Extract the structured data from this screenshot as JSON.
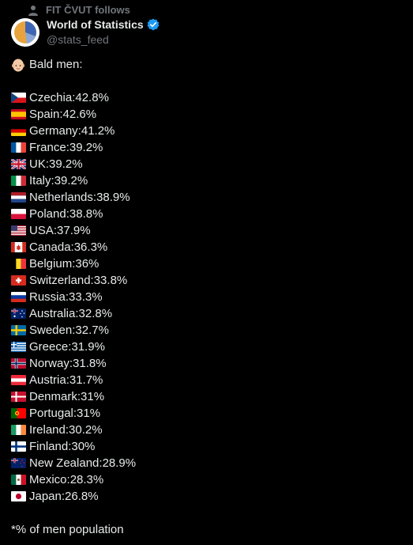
{
  "social_context": {
    "text": "FIT ČVUT follows",
    "icon": "person-icon"
  },
  "author": {
    "display_name": "World of Statistics",
    "handle": "@stats_feed",
    "verified": true,
    "verified_color": "#1d9bf0"
  },
  "tweet": {
    "heading": "Bald men:",
    "heading_icon": "bald-man-face-icon",
    "items": [
      {
        "country": "Czechia",
        "value": "42.8%",
        "flag": "cz"
      },
      {
        "country": "Spain",
        "value": "42.6%",
        "flag": "es"
      },
      {
        "country": "Germany",
        "value": "41.2%",
        "flag": "de"
      },
      {
        "country": "France",
        "value": "39.2%",
        "flag": "fr"
      },
      {
        "country": "UK",
        "value": "39.2%",
        "flag": "gb"
      },
      {
        "country": "Italy",
        "value": "39.2%",
        "flag": "it"
      },
      {
        "country": "Netherlands",
        "value": "38.9%",
        "flag": "nl"
      },
      {
        "country": "Poland",
        "value": "38.8%",
        "flag": "pl"
      },
      {
        "country": "USA",
        "value": "37.9%",
        "flag": "us"
      },
      {
        "country": "Canada",
        "value": "36.3%",
        "flag": "ca"
      },
      {
        "country": "Belgium",
        "value": "36%",
        "flag": "be"
      },
      {
        "country": "Switzerland",
        "value": "33.8%",
        "flag": "ch"
      },
      {
        "country": "Russia",
        "value": "33.3%",
        "flag": "ru"
      },
      {
        "country": "Australia",
        "value": "32.8%",
        "flag": "au"
      },
      {
        "country": "Sweden",
        "value": "32.7%",
        "flag": "se"
      },
      {
        "country": "Greece",
        "value": "31.9%",
        "flag": "gr"
      },
      {
        "country": "Norway",
        "value": "31.8%",
        "flag": "no"
      },
      {
        "country": "Austria",
        "value": "31.7%",
        "flag": "at"
      },
      {
        "country": "Denmark",
        "value": "31%",
        "flag": "dk"
      },
      {
        "country": "Portugal",
        "value": "31%",
        "flag": "pt"
      },
      {
        "country": "Ireland",
        "value": "30.2%",
        "flag": "ie"
      },
      {
        "country": "Finland",
        "value": "30%",
        "flag": "fi"
      },
      {
        "country": "New Zealand",
        "value": "28.9%",
        "flag": "nz"
      },
      {
        "country": "Mexico",
        "value": "28.3%",
        "flag": "mx"
      },
      {
        "country": "Japan",
        "value": "26.8%",
        "flag": "jp"
      }
    ],
    "footnote": "*% of men population"
  }
}
